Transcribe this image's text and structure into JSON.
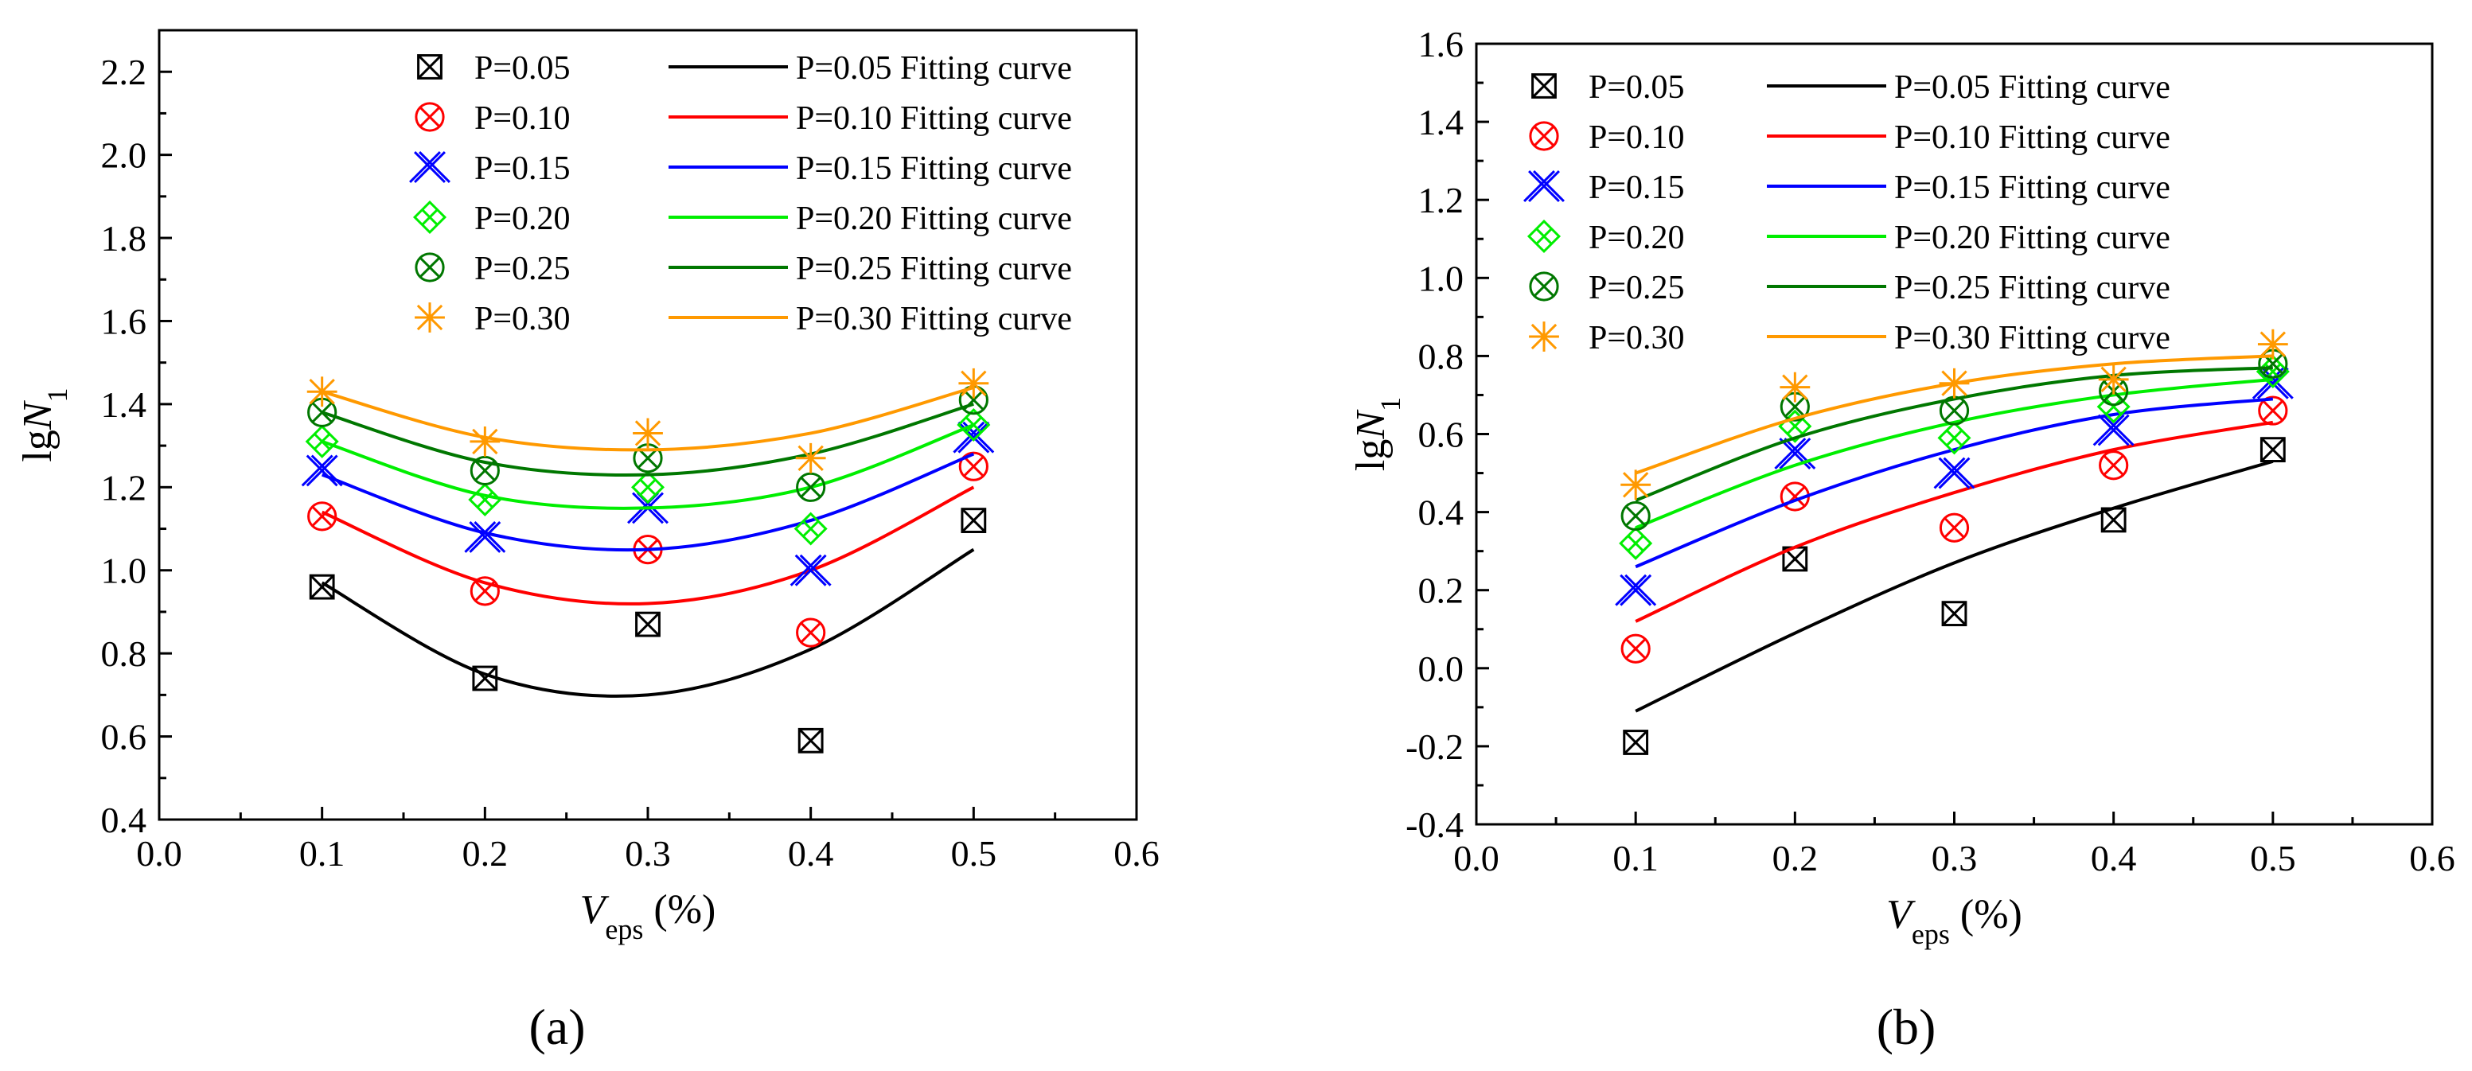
{
  "chart_data": [
    {
      "panel": "(a)",
      "type": "scatter",
      "xlabel": "V",
      "xlabel_sub": "eps",
      "xlabel_unit": " (%)",
      "ylabel": "lg",
      "ylabel_var": "N",
      "ylabel_sub": "1",
      "xlim": [
        0.0,
        0.6
      ],
      "ylim": [
        0.4,
        2.3
      ],
      "xticks": [
        "0.0",
        "0.1",
        "0.2",
        "0.3",
        "0.4",
        "0.5",
        "0.6"
      ],
      "yticks": [
        "0.4",
        "0.6",
        "0.8",
        "1.0",
        "1.2",
        "1.4",
        "1.6",
        "1.8",
        "2.0",
        "2.2"
      ],
      "grid": false,
      "legend_position": "top-right",
      "x": [
        0.1,
        0.2,
        0.3,
        0.4,
        0.5
      ],
      "series": [
        {
          "name": "P=0.05",
          "fit_name": "P=0.05 Fitting curve",
          "color": "#000000",
          "marker": "box-x",
          "values": [
            0.96,
            0.74,
            0.87,
            0.59,
            1.12
          ],
          "fit_values": [
            0.97,
            0.75,
            0.7,
            0.81,
            1.05
          ]
        },
        {
          "name": "P=0.10",
          "fit_name": "P=0.10 Fitting curve",
          "color": "#ff0000",
          "marker": "circle-x",
          "values": [
            1.13,
            0.95,
            1.05,
            0.85,
            1.25
          ],
          "fit_values": [
            1.14,
            0.97,
            0.92,
            1.0,
            1.2
          ]
        },
        {
          "name": "P=0.15",
          "fit_name": "P=0.15 Fitting curve",
          "color": "#0000ff",
          "marker": "double-x",
          "values": [
            1.24,
            1.08,
            1.15,
            1.0,
            1.32
          ],
          "fit_values": [
            1.23,
            1.09,
            1.05,
            1.12,
            1.28
          ]
        },
        {
          "name": "P=0.20",
          "fit_name": "P=0.20 Fitting curve",
          "color": "#00ee00",
          "marker": "diamond-x",
          "values": [
            1.31,
            1.17,
            1.2,
            1.1,
            1.35
          ],
          "fit_values": [
            1.31,
            1.18,
            1.15,
            1.2,
            1.35
          ]
        },
        {
          "name": "P=0.25",
          "fit_name": "P=0.25 Fitting curve",
          "color": "#007700",
          "marker": "circle-x",
          "values": [
            1.38,
            1.24,
            1.27,
            1.2,
            1.41
          ],
          "fit_values": [
            1.38,
            1.26,
            1.23,
            1.28,
            1.4
          ]
        },
        {
          "name": "P=0.30",
          "fit_name": "P=0.30 Fitting curve",
          "color": "#ff9900",
          "marker": "star",
          "values": [
            1.43,
            1.31,
            1.33,
            1.27,
            1.45
          ],
          "fit_values": [
            1.43,
            1.32,
            1.29,
            1.33,
            1.44
          ]
        }
      ]
    },
    {
      "panel": "(b)",
      "type": "scatter",
      "xlabel": "V",
      "xlabel_sub": "eps",
      "xlabel_unit": " (%)",
      "ylabel": "lg",
      "ylabel_var": "N",
      "ylabel_sub": "1",
      "xlim": [
        0.0,
        0.6
      ],
      "ylim": [
        -0.4,
        1.6
      ],
      "xticks": [
        "0.0",
        "0.1",
        "0.2",
        "0.3",
        "0.4",
        "0.5",
        "0.6"
      ],
      "yticks": [
        "-0.4",
        "-0.2",
        "0.0",
        "0.2",
        "0.4",
        "0.6",
        "0.8",
        "1.0",
        "1.2",
        "1.4",
        "1.6"
      ],
      "grid": false,
      "legend_position": "top-left",
      "x": [
        0.1,
        0.2,
        0.3,
        0.4,
        0.5
      ],
      "series": [
        {
          "name": "P=0.05",
          "fit_name": "P=0.05 Fitting curve",
          "color": "#000000",
          "marker": "box-x",
          "values": [
            -0.19,
            0.28,
            0.14,
            0.38,
            0.56
          ],
          "fit_values": [
            -0.11,
            0.09,
            0.27,
            0.41,
            0.53
          ]
        },
        {
          "name": "P=0.10",
          "fit_name": "P=0.10 Fitting curve",
          "color": "#ff0000",
          "marker": "circle-x",
          "values": [
            0.05,
            0.44,
            0.36,
            0.52,
            0.66
          ],
          "fit_values": [
            0.12,
            0.31,
            0.45,
            0.56,
            0.63
          ]
        },
        {
          "name": "P=0.15",
          "fit_name": "P=0.15 Fitting curve",
          "color": "#0000ff",
          "marker": "double-x",
          "values": [
            0.2,
            0.55,
            0.5,
            0.61,
            0.73
          ],
          "fit_values": [
            0.26,
            0.43,
            0.56,
            0.65,
            0.69
          ]
        },
        {
          "name": "P=0.20",
          "fit_name": "P=0.20 Fitting curve",
          "color": "#00ee00",
          "marker": "diamond-x",
          "values": [
            0.32,
            0.62,
            0.59,
            0.67,
            0.76
          ],
          "fit_values": [
            0.36,
            0.52,
            0.63,
            0.7,
            0.74
          ]
        },
        {
          "name": "P=0.25",
          "fit_name": "P=0.25 Fitting curve",
          "color": "#007700",
          "marker": "circle-x",
          "values": [
            0.39,
            0.67,
            0.66,
            0.71,
            0.78
          ],
          "fit_values": [
            0.43,
            0.59,
            0.69,
            0.75,
            0.77
          ]
        },
        {
          "name": "P=0.30",
          "fit_name": "P=0.30 Fitting curve",
          "color": "#ff9900",
          "marker": "star",
          "values": [
            0.47,
            0.72,
            0.73,
            0.74,
            0.83
          ],
          "fit_values": [
            0.5,
            0.64,
            0.73,
            0.78,
            0.8
          ]
        }
      ]
    }
  ]
}
